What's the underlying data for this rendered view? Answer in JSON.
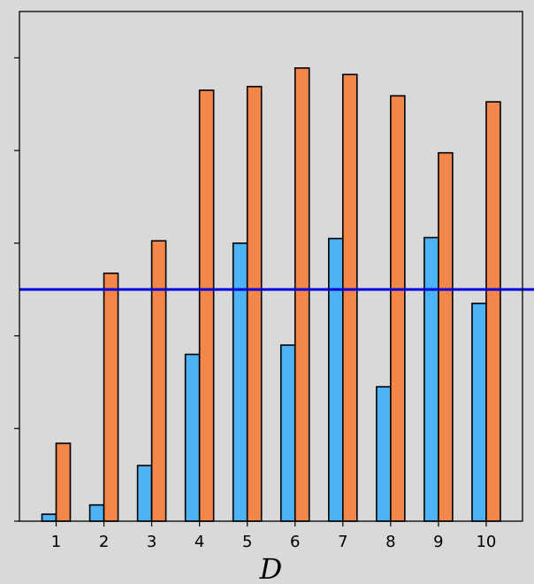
{
  "chart_data": {
    "type": "bar",
    "title": "",
    "xlabel": "D",
    "ylabel": "",
    "categories": [
      "1",
      "2",
      "3",
      "4",
      "5",
      "6",
      "7",
      "8",
      "9",
      "10"
    ],
    "series": [
      {
        "color": "#4db3f5",
        "values": [
          0.015,
          0.035,
          0.12,
          0.36,
          0.6,
          0.38,
          0.61,
          0.29,
          0.612,
          0.47
        ]
      },
      {
        "color": "#f3874a",
        "values": [
          0.168,
          0.535,
          0.605,
          0.93,
          0.938,
          0.978,
          0.964,
          0.918,
          0.795,
          0.905
        ]
      }
    ],
    "reference_line": {
      "value": 0.5,
      "color": "#0000dd"
    },
    "ylim": [
      0,
      1.1
    ],
    "yticks": [
      0,
      0.2,
      0.4,
      0.6,
      0.8,
      1.0
    ],
    "ytick_labels_visible": false,
    "grid": false,
    "background_color": "#d9d9d9"
  }
}
